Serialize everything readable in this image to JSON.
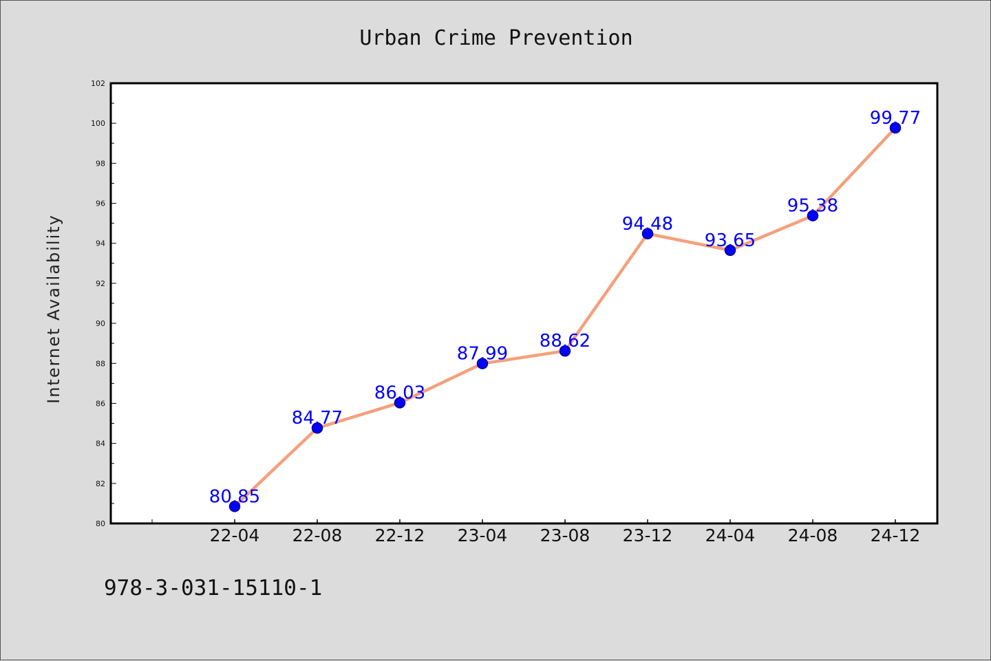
{
  "chart_data": {
    "type": "line",
    "title": "Urban Crime Prevention",
    "xlabel": "",
    "ylabel": "Internet Availability",
    "categories": [
      "22-04",
      "22-08",
      "22-12",
      "23-04",
      "23-08",
      "23-12",
      "24-04",
      "24-08",
      "24-12"
    ],
    "values": [
      80.85,
      84.77,
      86.03,
      87.99,
      88.62,
      94.48,
      93.65,
      95.38,
      99.77
    ],
    "data_labels": [
      "80.85",
      "84.77",
      "86.03",
      "87.99",
      "88.62",
      "94.48",
      "93.65",
      "95.38",
      "99.77"
    ],
    "ylim": [
      80,
      102
    ],
    "yticks": [
      "80",
      "82",
      "84",
      "86",
      "88",
      "90",
      "92",
      "94",
      "96",
      "98",
      "100",
      "102"
    ],
    "grid": false,
    "legend": "none",
    "colors": {
      "line": "#f4a07c",
      "marker": "#0000ff",
      "marker_edge": "#00008b",
      "data_label": "#0000ff",
      "plot_background": "#ffffff",
      "figure_background": "#dcdcdc"
    }
  },
  "footer": {
    "isbn": "978-3-031-15110-1"
  }
}
